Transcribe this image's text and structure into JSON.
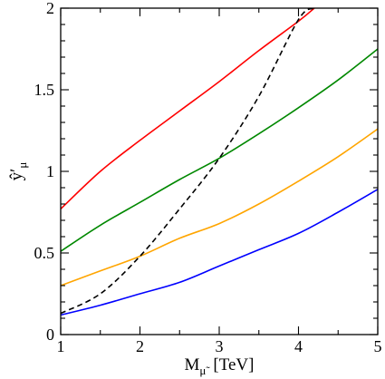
{
  "chart_data": {
    "type": "line",
    "title": "",
    "xlabel": {
      "main": "M",
      "sub": "μ̃",
      "unit": "[TeV]"
    },
    "ylabel": {
      "main": "ŷ′",
      "sub": "μ"
    },
    "xlim": [
      1,
      5
    ],
    "ylim": [
      0,
      2
    ],
    "x_ticks": [
      1,
      2,
      3,
      4,
      5
    ],
    "y_ticks": [
      0,
      0.5,
      1,
      1.5,
      2
    ],
    "y_tick_labels": [
      "0",
      "0.5",
      "1",
      "1.5",
      "2"
    ],
    "grid": false,
    "series": [
      {
        "color": "#ff0000",
        "style": "solid",
        "x": [
          1.0,
          1.5,
          2.0,
          2.5,
          3.0,
          3.5,
          4.0,
          4.2
        ],
        "y": [
          0.77,
          1.0,
          1.19,
          1.37,
          1.55,
          1.74,
          1.92,
          2.0
        ]
      },
      {
        "color": "#008800",
        "style": "solid",
        "x": [
          1.0,
          1.5,
          2.0,
          2.5,
          3.0,
          3.5,
          4.0,
          4.5,
          5.0
        ],
        "y": [
          0.51,
          0.67,
          0.81,
          0.95,
          1.08,
          1.23,
          1.39,
          1.56,
          1.75
        ]
      },
      {
        "color": "#ffa500",
        "style": "solid",
        "x": [
          1.0,
          1.5,
          2.0,
          2.5,
          3.0,
          3.5,
          4.0,
          4.5,
          5.0
        ],
        "y": [
          0.3,
          0.39,
          0.48,
          0.59,
          0.68,
          0.8,
          0.94,
          1.09,
          1.26
        ]
      },
      {
        "color": "#0000ff",
        "style": "solid",
        "x": [
          1.0,
          1.5,
          2.0,
          2.5,
          3.0,
          3.5,
          4.0,
          4.5,
          5.0
        ],
        "y": [
          0.12,
          0.18,
          0.25,
          0.32,
          0.42,
          0.52,
          0.62,
          0.75,
          0.89
        ]
      },
      {
        "color": "#000000",
        "style": "dashed",
        "x": [
          1.0,
          1.5,
          2.0,
          2.5,
          3.0,
          3.5,
          4.0,
          4.2
        ],
        "y": [
          0.13,
          0.25,
          0.48,
          0.77,
          1.08,
          1.46,
          1.93,
          2.0
        ]
      }
    ]
  }
}
